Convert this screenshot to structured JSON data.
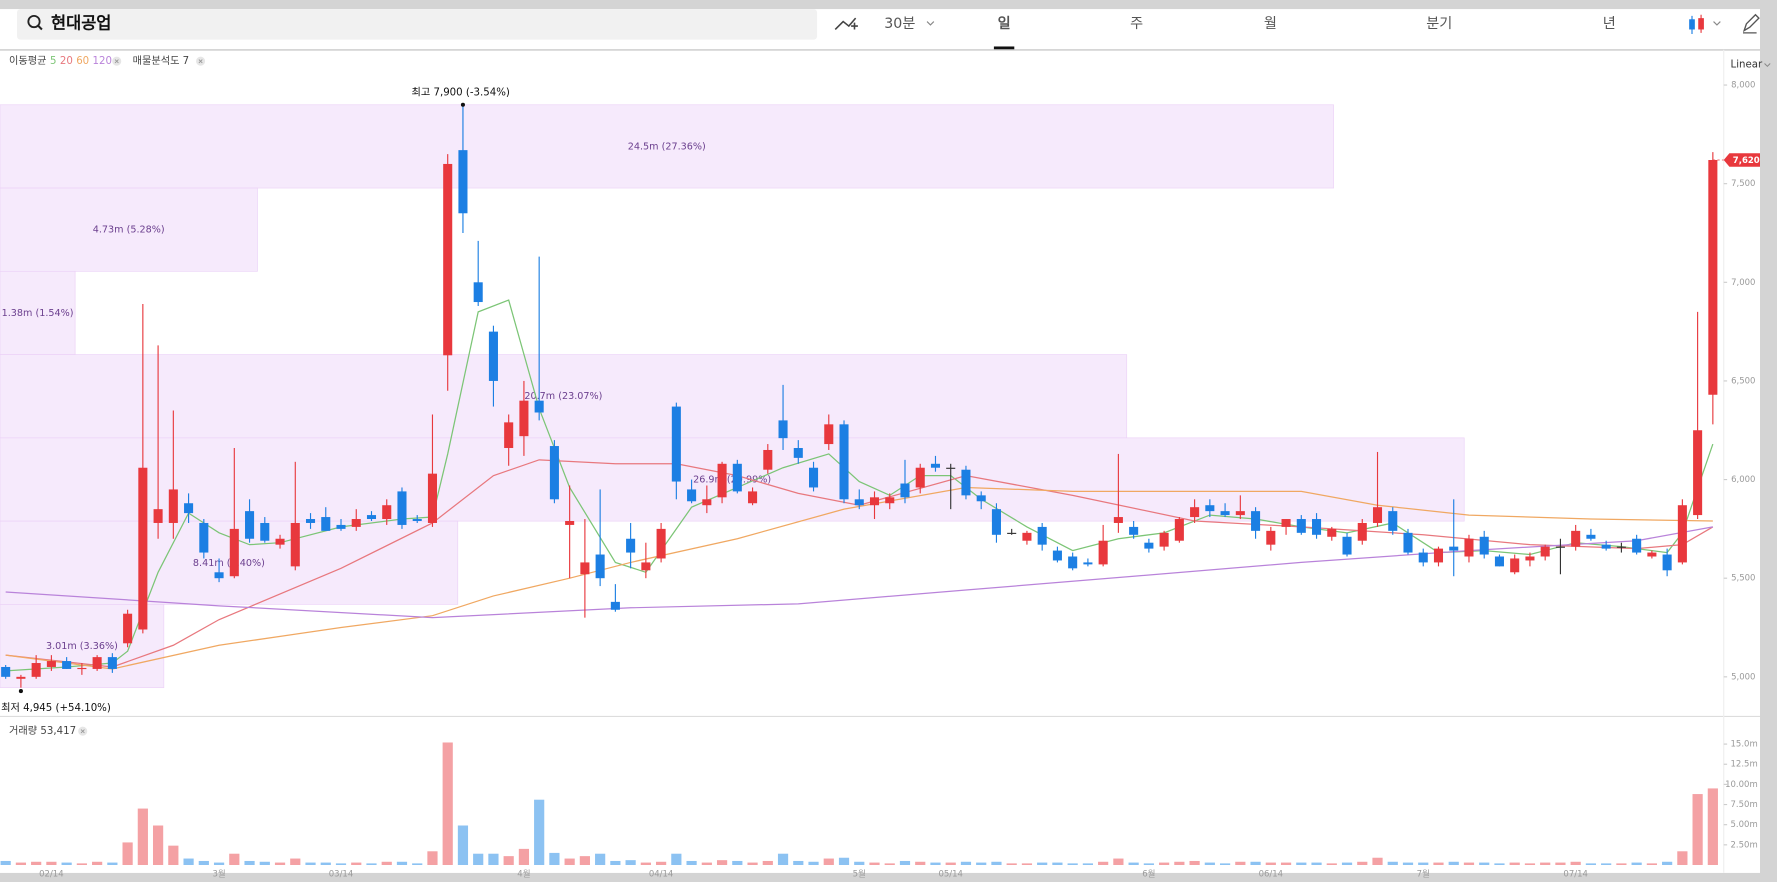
{
  "header": {
    "search": "현대공업",
    "tabs": [
      "30분",
      "일",
      "주",
      "월",
      "분기",
      "년"
    ],
    "selected_tab_index": 1,
    "scale": "Linear"
  },
  "chart_data": [
    {
      "type": "candlestick",
      "up_color": "#e8383d",
      "down_color": "#1c7fe3",
      "flat_color": "#333333",
      "open": [
        5050,
        4990,
        5000,
        5050,
        5080,
        5040,
        5040,
        5100,
        5170,
        5240,
        5780,
        5780,
        5880,
        5780,
        5530,
        5510,
        5840,
        5780,
        5670,
        5560,
        5800,
        5810,
        5770,
        5760,
        5820,
        5800,
        5940,
        5800,
        5780,
        6630,
        7670,
        7000,
        6750,
        6160,
        6220,
        6400,
        6170,
        5770,
        5520,
        5620,
        5380,
        5700,
        5540,
        5600,
        6370,
        5950,
        5870,
        5910,
        6080,
        5880,
        6050,
        6300,
        6160,
        6060,
        6180,
        6280,
        5900,
        5870,
        5880,
        5980,
        5960,
        6080,
        6060,
        6050,
        5920,
        5850,
        5730,
        5690,
        5760,
        5640,
        5610,
        5580,
        5570,
        5780,
        5760,
        5680,
        5660,
        5690,
        5810,
        5870,
        5840,
        5820,
        5840,
        5670,
        5760,
        5800,
        5800,
        5710,
        5710,
        5690,
        5780,
        5840,
        5730,
        5630,
        5580,
        5660,
        5610,
        5710,
        5610,
        5530,
        5590,
        5610,
        5660,
        5660,
        5720,
        5670,
        5660,
        5700,
        5610,
        5620,
        5580,
        5820,
        6430
      ],
      "high": [
        5060,
        5010,
        5110,
        5110,
        5100,
        5070,
        5110,
        5120,
        5340,
        6890,
        6680,
        6350,
        5930,
        5800,
        5600,
        6160,
        5900,
        5810,
        5720,
        6090,
        5830,
        5860,
        5800,
        5850,
        5840,
        5900,
        5960,
        5820,
        6330,
        7650,
        7900,
        7210,
        6780,
        6330,
        6500,
        7130,
        6200,
        5970,
        5800,
        5950,
        5470,
        5780,
        5680,
        5780,
        6390,
        6000,
        5970,
        6090,
        6100,
        5960,
        6180,
        6480,
        6200,
        6090,
        6330,
        6300,
        5950,
        5940,
        5930,
        6100,
        6080,
        6120,
        6080,
        6070,
        5940,
        5880,
        5750,
        5740,
        5780,
        5660,
        5630,
        5600,
        5770,
        6130,
        5790,
        5700,
        5740,
        5810,
        5900,
        5900,
        5880,
        5920,
        5860,
        5760,
        5800,
        5820,
        5830,
        5760,
        5730,
        5800,
        6140,
        5860,
        5750,
        5650,
        5660,
        5900,
        5720,
        5740,
        5620,
        5620,
        5630,
        5670,
        5700,
        5770,
        5750,
        5690,
        5680,
        5720,
        5640,
        5650,
        5900,
        6850,
        7660
      ],
      "low": [
        4990,
        4945,
        4990,
        5030,
        5040,
        5010,
        5030,
        5020,
        5150,
        5220,
        5700,
        5700,
        5780,
        5600,
        5480,
        5500,
        5680,
        5680,
        5650,
        5540,
        5750,
        5740,
        5740,
        5740,
        5790,
        5770,
        5750,
        5780,
        5760,
        6450,
        7250,
        6880,
        6370,
        6070,
        6120,
        6300,
        5880,
        5500,
        5300,
        5460,
        5330,
        5550,
        5500,
        5580,
        5900,
        5880,
        5830,
        5880,
        5930,
        5870,
        6030,
        6150,
        6080,
        5940,
        6150,
        5880,
        5850,
        5800,
        5850,
        5880,
        5930,
        6040,
        5850,
        5900,
        5850,
        5680,
        5720,
        5670,
        5640,
        5580,
        5540,
        5560,
        5560,
        5730,
        5700,
        5630,
        5640,
        5680,
        5780,
        5810,
        5810,
        5800,
        5700,
        5640,
        5720,
        5720,
        5700,
        5690,
        5610,
        5670,
        5760,
        5720,
        5620,
        5560,
        5560,
        5510,
        5580,
        5600,
        5560,
        5520,
        5560,
        5590,
        5520,
        5640,
        5690,
        5640,
        5630,
        5620,
        5600,
        5510,
        5570,
        5800,
        6280
      ],
      "close": [
        5000,
        5000,
        5070,
        5080,
        5040,
        5045,
        5100,
        5040,
        5320,
        6060,
        5850,
        5950,
        5830,
        5630,
        5500,
        5750,
        5700,
        5690,
        5700,
        5780,
        5780,
        5740,
        5750,
        5800,
        5800,
        5870,
        5770,
        5790,
        6030,
        7600,
        7350,
        6900,
        6500,
        6290,
        6400,
        6340,
        5900,
        5790,
        5580,
        5500,
        5340,
        5630,
        5580,
        5750,
        5990,
        5890,
        5900,
        6080,
        5940,
        5940,
        6150,
        6210,
        6110,
        5960,
        6280,
        5900,
        5870,
        5910,
        5910,
        5910,
        6060,
        6060,
        6060,
        5920,
        5890,
        5720,
        5730,
        5730,
        5670,
        5590,
        5550,
        5570,
        5690,
        5810,
        5720,
        5650,
        5730,
        5800,
        5860,
        5840,
        5820,
        5840,
        5740,
        5740,
        5800,
        5730,
        5720,
        5750,
        5620,
        5780,
        5860,
        5740,
        5630,
        5580,
        5650,
        5640,
        5700,
        5620,
        5560,
        5600,
        5610,
        5660,
        5660,
        5740,
        5700,
        5650,
        5660,
        5630,
        5630,
        5540,
        5870,
        6250,
        7620
      ],
      "ylim": [
        4799,
        8161
      ],
      "yticks": [
        {
          "value": 5000,
          "label": "5,000"
        },
        {
          "value": 5500,
          "label": "5,500"
        },
        {
          "value": 6000,
          "label": "6,000"
        },
        {
          "value": 6500,
          "label": "6,500"
        },
        {
          "value": 7000,
          "label": "7,000"
        },
        {
          "value": 7500,
          "label": "7,500"
        },
        {
          "value": 8000,
          "label": "8,000"
        }
      ],
      "ma_title": "이동평균",
      "series": [
        {
          "name": "5",
          "type": "line",
          "color": "#7cc576",
          "x": [
            0,
            4,
            7,
            8,
            10,
            12,
            14,
            16,
            18,
            22,
            26,
            28,
            29,
            31,
            33,
            35,
            37,
            40,
            42,
            45,
            48,
            51,
            54,
            56,
            58,
            60,
            62,
            64,
            67,
            70,
            73,
            76,
            79,
            82,
            85,
            88,
            91,
            94,
            97,
            100,
            103,
            106,
            109,
            110,
            112
          ],
          "values": [
            5030,
            5050,
            5070,
            5130,
            5530,
            5830,
            5730,
            5670,
            5680,
            5760,
            5800,
            5810,
            6130,
            6850,
            6910,
            6360,
            5960,
            5580,
            5530,
            5860,
            5960,
            6060,
            6130,
            5990,
            5920,
            6020,
            6020,
            5900,
            5760,
            5640,
            5700,
            5730,
            5820,
            5800,
            5760,
            5730,
            5780,
            5630,
            5640,
            5620,
            5680,
            5660,
            5630,
            5730,
            6180
          ]
        },
        {
          "name": "20",
          "type": "line",
          "color": "#e8787e",
          "x": [
            0,
            7,
            11,
            14,
            22,
            28,
            32,
            35,
            40,
            44,
            48,
            52,
            56,
            63,
            70,
            78,
            85,
            93,
            100,
            107,
            110,
            112
          ],
          "values": [
            5110,
            5050,
            5160,
            5290,
            5550,
            5780,
            6020,
            6100,
            6080,
            6080,
            6020,
            5930,
            5870,
            6020,
            5920,
            5790,
            5760,
            5720,
            5670,
            5650,
            5670,
            5760
          ]
        },
        {
          "name": "60",
          "type": "line",
          "color": "#f0a862",
          "x": [
            0,
            7,
            14,
            22,
            28,
            32,
            37,
            41,
            48,
            55,
            63,
            70,
            78,
            85,
            90,
            96,
            104,
            112
          ],
          "values": [
            5110,
            5040,
            5160,
            5250,
            5310,
            5410,
            5500,
            5580,
            5700,
            5850,
            5960,
            5940,
            5940,
            5940,
            5870,
            5820,
            5800,
            5790
          ]
        },
        {
          "name": "120",
          "type": "line",
          "color": "#b983da",
          "x": [
            0,
            14,
            28,
            41,
            52,
            63,
            74,
            85,
            96,
            107,
            112
          ],
          "values": [
            5430,
            5360,
            5300,
            5350,
            5370,
            5440,
            5510,
            5580,
            5640,
            5690,
            5760
          ]
        }
      ],
      "annotations": {
        "high": {
          "value": 7900,
          "label": "최고 7,900 (-3.54%)"
        },
        "low": {
          "value": 4945,
          "label": "최저 4,945 (+54.10%)"
        }
      },
      "last_price": {
        "value": 7620,
        "label": "7,620"
      },
      "volume_profile": {
        "title": "매물분석도 7",
        "color": "#f5e6fc",
        "values": [
          24.5,
          4.73,
          1.38,
          20.7,
          26.9,
          8.41,
          3.01
        ],
        "value_labels": [
          "24.5m (27.36%)",
          "4.73m (5.28%)",
          "1.38m (1.54%)",
          "20.7m (23.07%)",
          "26.9m (29.99%)",
          "8.41m (9.40%)",
          "3.01m (3.36%)"
        ]
      }
    },
    {
      "type": "bar",
      "title": "거래량 53,417",
      "up_color": "#f4a1a4",
      "down_color": "#8cc2f2",
      "categories": [
        null,
        null,
        null,
        "02/14",
        null,
        null,
        null,
        null,
        null,
        null,
        null,
        null,
        null,
        null,
        "3월",
        null,
        null,
        null,
        null,
        null,
        null,
        null,
        "03/14",
        null,
        null,
        null,
        null,
        null,
        null,
        null,
        null,
        null,
        null,
        null,
        "4월",
        null,
        null,
        null,
        null,
        null,
        null,
        null,
        null,
        "04/14",
        null,
        null,
        null,
        null,
        null,
        null,
        null,
        null,
        null,
        null,
        null,
        null,
        "5월",
        null,
        null,
        null,
        null,
        null,
        "05/14",
        null,
        null,
        null,
        null,
        null,
        null,
        null,
        null,
        null,
        null,
        null,
        null,
        "6월",
        null,
        null,
        null,
        null,
        null,
        null,
        null,
        "06/14",
        null,
        null,
        null,
        null,
        null,
        null,
        null,
        null,
        null,
        "7월",
        null,
        null,
        null,
        null,
        null,
        null,
        null,
        null,
        null,
        "07/14",
        null,
        null,
        null,
        null,
        null,
        null,
        null,
        null,
        null
      ],
      "values": [
        0.5,
        0.3,
        0.4,
        0.4,
        0.3,
        0.2,
        0.4,
        0.3,
        2.8,
        7.0,
        4.9,
        2.4,
        0.8,
        0.5,
        0.3,
        1.4,
        0.5,
        0.4,
        0.3,
        0.8,
        0.3,
        0.3,
        0.2,
        0.3,
        0.2,
        0.4,
        0.4,
        0.2,
        1.7,
        15.2,
        4.9,
        1.4,
        1.4,
        1.1,
        2.0,
        8.1,
        1.5,
        0.8,
        1.1,
        1.4,
        0.5,
        0.6,
        0.3,
        0.4,
        1.4,
        0.5,
        0.3,
        0.6,
        0.5,
        0.3,
        0.5,
        1.4,
        0.5,
        0.4,
        0.8,
        0.9,
        0.4,
        0.3,
        0.2,
        0.5,
        0.4,
        0.3,
        0.3,
        0.4,
        0.3,
        0.4,
        0.2,
        0.2,
        0.3,
        0.3,
        0.2,
        0.2,
        0.4,
        0.8,
        0.3,
        0.2,
        0.3,
        0.4,
        0.5,
        0.3,
        0.2,
        0.4,
        0.4,
        0.3,
        0.3,
        0.3,
        0.3,
        0.2,
        0.3,
        0.4,
        0.9,
        0.4,
        0.3,
        0.3,
        0.3,
        0.4,
        0.3,
        0.3,
        0.2,
        0.3,
        0.2,
        0.3,
        0.3,
        0.4,
        0.2,
        0.2,
        0.2,
        0.3,
        0.2,
        0.4,
        1.7,
        8.8,
        9.5
      ],
      "ylim": [
        0,
        17.3
      ],
      "yticks": [
        {
          "value": 2.5,
          "label": "2.50m"
        },
        {
          "value": 5,
          "label": "5.00m"
        },
        {
          "value": 7.5,
          "label": "7.50m"
        },
        {
          "value": 10,
          "label": "10.00m"
        },
        {
          "value": 12.5,
          "label": "12.5m"
        },
        {
          "value": 15,
          "label": "15.0m"
        }
      ]
    }
  ]
}
